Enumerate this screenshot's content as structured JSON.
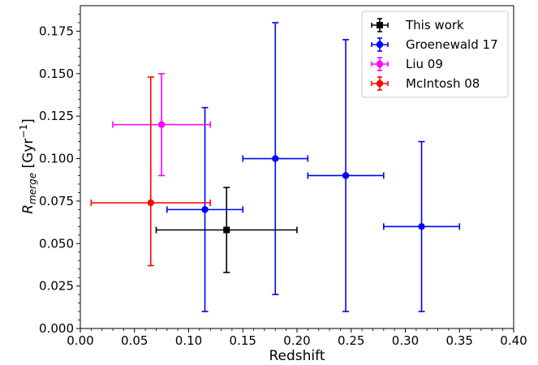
{
  "chart_data": {
    "type": "scatter",
    "xlabel": "Redshift",
    "ylabel": {
      "main": "R",
      "sub": "merge",
      "unit_pre": " [Gyr",
      "unit_sup": "−1",
      "unit_post": "]"
    },
    "xlim": [
      0.0,
      0.4
    ],
    "ylim": [
      0.0,
      0.19
    ],
    "x_ticks": [
      "0.00",
      "0.05",
      "0.10",
      "0.15",
      "0.20",
      "0.25",
      "0.30",
      "0.35",
      "0.40"
    ],
    "y_ticks": [
      "0.000",
      "0.025",
      "0.050",
      "0.075",
      "0.100",
      "0.125",
      "0.150",
      "0.175"
    ],
    "grid": false,
    "legend_position": "top-right",
    "series": [
      {
        "name": "This work",
        "color": "#000000",
        "marker": "square",
        "points": [
          {
            "x": 0.135,
            "y": 0.058,
            "xerr": [
              0.07,
              0.2
            ],
            "yerr": [
              0.033,
              0.083
            ]
          }
        ]
      },
      {
        "name": "Groenewald 17",
        "color": "#0000ff",
        "marker": "circle",
        "points": [
          {
            "x": 0.115,
            "y": 0.07,
            "xerr": [
              0.08,
              0.15
            ],
            "yerr": [
              0.01,
              0.13
            ]
          },
          {
            "x": 0.18,
            "y": 0.1,
            "xerr": [
              0.15,
              0.21
            ],
            "yerr": [
              0.02,
              0.18
            ]
          },
          {
            "x": 0.245,
            "y": 0.09,
            "xerr": [
              0.21,
              0.28
            ],
            "yerr": [
              0.01,
              0.17
            ]
          },
          {
            "x": 0.315,
            "y": 0.06,
            "xerr": [
              0.28,
              0.35
            ],
            "yerr": [
              0.01,
              0.11
            ]
          }
        ]
      },
      {
        "name": "Liu 09",
        "color": "#ff00ff",
        "marker": "circle",
        "points": [
          {
            "x": 0.075,
            "y": 0.12,
            "xerr": [
              0.03,
              0.12
            ],
            "yerr": [
              0.09,
              0.15
            ]
          }
        ]
      },
      {
        "name": "McIntosh 08",
        "color": "#ff0000",
        "marker": "circle",
        "points": [
          {
            "x": 0.065,
            "y": 0.074,
            "xerr": [
              0.01,
              0.12
            ],
            "yerr": [
              0.037,
              0.148
            ]
          }
        ]
      }
    ]
  }
}
